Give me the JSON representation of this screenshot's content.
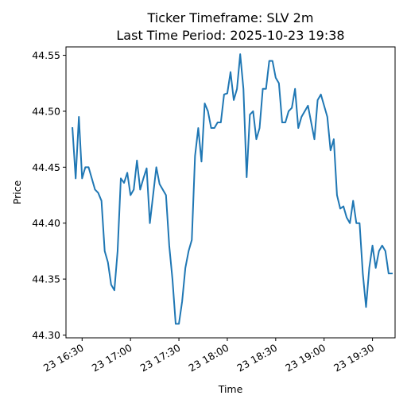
{
  "chart_data": {
    "type": "line",
    "title_line1": "Ticker Timeframe: SLV 2m",
    "title_line2": "Last Time Period: 2025-10-23 19:38",
    "xlabel": "Time",
    "ylabel": "Price",
    "x_ticks": [
      {
        "label": "23 16:30",
        "minutes": 0
      },
      {
        "label": "23 17:00",
        "minutes": 30
      },
      {
        "label": "23 17:30",
        "minutes": 60
      },
      {
        "label": "23 18:00",
        "minutes": 90
      },
      {
        "label": "23 18:30",
        "minutes": 120
      },
      {
        "label": "23 19:00",
        "minutes": 150
      },
      {
        "label": "23 19:30",
        "minutes": 180
      }
    ],
    "y_ticks": [
      {
        "label": "44.30",
        "value": 44.3
      },
      {
        "label": "44.35",
        "value": 44.35
      },
      {
        "label": "44.40",
        "value": 44.4
      },
      {
        "label": "44.45",
        "value": 44.45
      },
      {
        "label": "44.50",
        "value": 44.5
      },
      {
        "label": "44.55",
        "value": 44.55
      }
    ],
    "x_range_minutes": [
      -10,
      194
    ],
    "ylim": [
      44.2975,
      44.5575
    ],
    "grid": false,
    "series": [
      {
        "color": "#1f77b4",
        "points": [
          [
            -6,
            44.485
          ],
          [
            -4,
            44.44
          ],
          [
            -2,
            44.495
          ],
          [
            0,
            44.44
          ],
          [
            2,
            44.45
          ],
          [
            4,
            44.45
          ],
          [
            6,
            44.44
          ],
          [
            8,
            44.43
          ],
          [
            10,
            44.427
          ],
          [
            12,
            44.42
          ],
          [
            14,
            44.375
          ],
          [
            16,
            44.365
          ],
          [
            18,
            44.345
          ],
          [
            20,
            44.34
          ],
          [
            22,
            44.375
          ],
          [
            24,
            44.44
          ],
          [
            26,
            44.436
          ],
          [
            28,
            44.445
          ],
          [
            30,
            44.425
          ],
          [
            32,
            44.43
          ],
          [
            34,
            44.456
          ],
          [
            36,
            44.43
          ],
          [
            38,
            44.44
          ],
          [
            40,
            44.449
          ],
          [
            42,
            44.4
          ],
          [
            44,
            44.425
          ],
          [
            46,
            44.45
          ],
          [
            48,
            44.435
          ],
          [
            50,
            44.43
          ],
          [
            52,
            44.425
          ],
          [
            54,
            44.38
          ],
          [
            56,
            44.35
          ],
          [
            58,
            44.31
          ],
          [
            60,
            44.31
          ],
          [
            62,
            44.33
          ],
          [
            64,
            44.36
          ],
          [
            66,
            44.375
          ],
          [
            68,
            44.385
          ],
          [
            70,
            44.46
          ],
          [
            72,
            44.485
          ],
          [
            74,
            44.455
          ],
          [
            76,
            44.507
          ],
          [
            78,
            44.5
          ],
          [
            80,
            44.485
          ],
          [
            82,
            44.485
          ],
          [
            84,
            44.49
          ],
          [
            86,
            44.49
          ],
          [
            88,
            44.515
          ],
          [
            90,
            44.516
          ],
          [
            92,
            44.535
          ],
          [
            94,
            44.51
          ],
          [
            96,
            44.52
          ],
          [
            98,
            44.551
          ],
          [
            100,
            44.52
          ],
          [
            102,
            44.441
          ],
          [
            104,
            44.497
          ],
          [
            106,
            44.5
          ],
          [
            108,
            44.475
          ],
          [
            110,
            44.485
          ],
          [
            112,
            44.52
          ],
          [
            114,
            44.52
          ],
          [
            116,
            44.545
          ],
          [
            118,
            44.545
          ],
          [
            120,
            44.53
          ],
          [
            122,
            44.525
          ],
          [
            124,
            44.49
          ],
          [
            126,
            44.49
          ],
          [
            128,
            44.5
          ],
          [
            130,
            44.503
          ],
          [
            132,
            44.52
          ],
          [
            134,
            44.485
          ],
          [
            136,
            44.495
          ],
          [
            138,
            44.5
          ],
          [
            140,
            44.505
          ],
          [
            142,
            44.49
          ],
          [
            144,
            44.475
          ],
          [
            146,
            44.51
          ],
          [
            148,
            44.515
          ],
          [
            150,
            44.505
          ],
          [
            152,
            44.495
          ],
          [
            154,
            44.465
          ],
          [
            156,
            44.475
          ],
          [
            158,
            44.425
          ],
          [
            160,
            44.413
          ],
          [
            162,
            44.415
          ],
          [
            164,
            44.405
          ],
          [
            166,
            44.4
          ],
          [
            168,
            44.42
          ],
          [
            170,
            44.4
          ],
          [
            172,
            44.4
          ],
          [
            174,
            44.355
          ],
          [
            176,
            44.325
          ],
          [
            178,
            44.36
          ],
          [
            180,
            44.38
          ],
          [
            182,
            44.36
          ],
          [
            184,
            44.375
          ],
          [
            186,
            44.38
          ],
          [
            188,
            44.375
          ],
          [
            190,
            44.355
          ],
          [
            192,
            44.355
          ]
        ]
      }
    ]
  }
}
